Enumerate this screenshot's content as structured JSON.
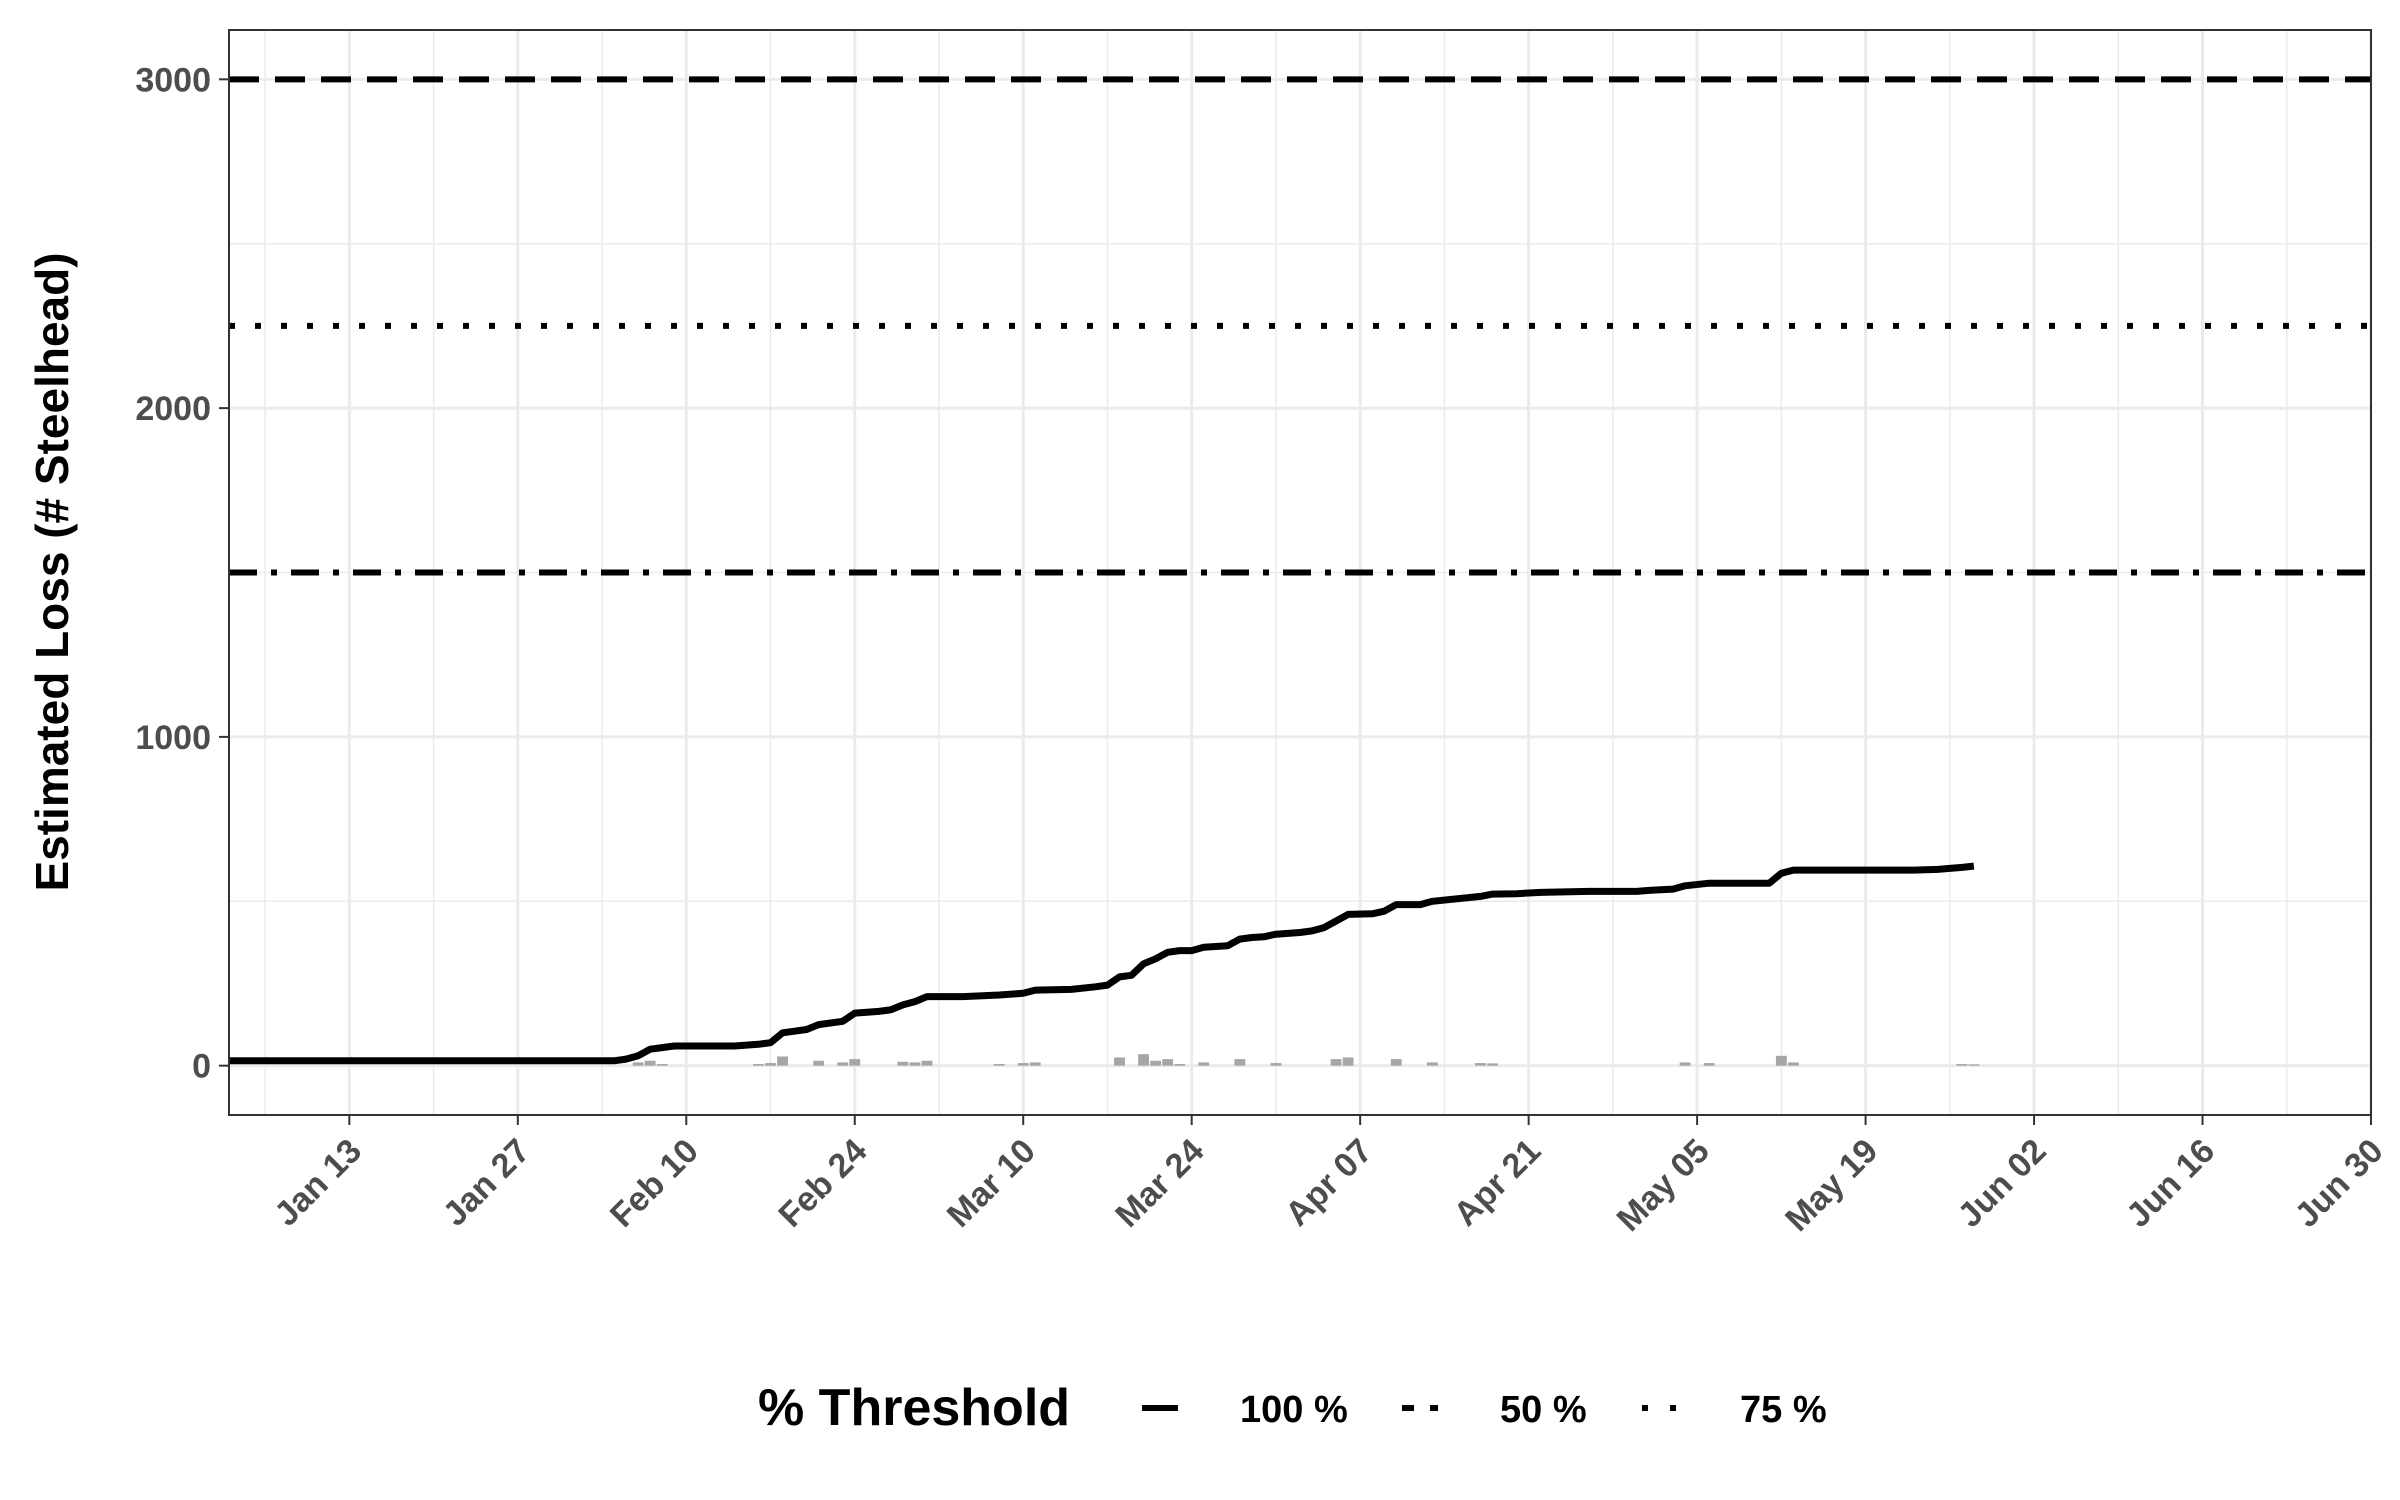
{
  "chart_data": {
    "type": "line",
    "title": "",
    "xlabel": "",
    "ylabel": "Estimated Loss (# Steelhead)",
    "x_axis_type": "date",
    "x_range": [
      "2025-01-03",
      "2025-06-30"
    ],
    "x_ticks": [
      "2025-01-13",
      "2025-01-27",
      "2025-02-10",
      "2025-02-24",
      "2025-03-10",
      "2025-03-24",
      "2025-04-07",
      "2025-04-21",
      "2025-05-05",
      "2025-05-19",
      "2025-06-02",
      "2025-06-16",
      "2025-06-30"
    ],
    "x_tick_labels": [
      "Jan 13",
      "Jan 27",
      "Feb 10",
      "Feb 24",
      "Mar 10",
      "Mar 24",
      "Apr 07",
      "Apr 21",
      "May 05",
      "May 19",
      "Jun 02",
      "Jun 16",
      "Jun 30"
    ],
    "ylim": [
      -150,
      3150
    ],
    "y_ticks": [
      0,
      1000,
      2000,
      3000
    ],
    "y_tick_labels": [
      "0",
      "1000",
      "2000",
      "3000"
    ],
    "grid": true,
    "legend": {
      "title": "% Threshold",
      "position": "bottom",
      "items": [
        {
          "label": "100 %",
          "linetype": "longdash"
        },
        {
          "label": "50 %",
          "linetype": "dotdash"
        },
        {
          "label": "75 %",
          "linetype": "dotted"
        }
      ]
    },
    "threshold_lines": [
      {
        "label": "100 %",
        "value": 3000,
        "linetype": "longdash"
      },
      {
        "label": "75 %",
        "value": 2250,
        "linetype": "dotted"
      },
      {
        "label": "50 %",
        "value": 1500,
        "linetype": "dotdash"
      }
    ],
    "cumulative_series": {
      "color": "#000000",
      "points": [
        [
          "2025-01-03",
          15
        ],
        [
          "2025-01-20",
          15
        ],
        [
          "2025-02-04",
          15
        ],
        [
          "2025-02-05",
          20
        ],
        [
          "2025-02-06",
          30
        ],
        [
          "2025-02-07",
          50
        ],
        [
          "2025-02-08",
          55
        ],
        [
          "2025-02-09",
          60
        ],
        [
          "2025-02-14",
          60
        ],
        [
          "2025-02-16",
          65
        ],
        [
          "2025-02-17",
          70
        ],
        [
          "2025-02-18",
          100
        ],
        [
          "2025-02-19",
          105
        ],
        [
          "2025-02-20",
          110
        ],
        [
          "2025-02-21",
          125
        ],
        [
          "2025-02-23",
          135
        ],
        [
          "2025-02-24",
          160
        ],
        [
          "2025-02-26",
          165
        ],
        [
          "2025-02-27",
          170
        ],
        [
          "2025-02-28",
          185
        ],
        [
          "2025-03-01",
          195
        ],
        [
          "2025-03-02",
          210
        ],
        [
          "2025-03-05",
          210
        ],
        [
          "2025-03-08",
          215
        ],
        [
          "2025-03-10",
          220
        ],
        [
          "2025-03-11",
          230
        ],
        [
          "2025-03-14",
          232
        ],
        [
          "2025-03-16",
          240
        ],
        [
          "2025-03-17",
          245
        ],
        [
          "2025-03-18",
          270
        ],
        [
          "2025-03-19",
          275
        ],
        [
          "2025-03-20",
          310
        ],
        [
          "2025-03-21",
          325
        ],
        [
          "2025-03-22",
          345
        ],
        [
          "2025-03-23",
          350
        ],
        [
          "2025-03-24",
          350
        ],
        [
          "2025-03-25",
          360
        ],
        [
          "2025-03-27",
          365
        ],
        [
          "2025-03-28",
          385
        ],
        [
          "2025-03-29",
          390
        ],
        [
          "2025-03-30",
          392
        ],
        [
          "2025-03-31",
          400
        ],
        [
          "2025-04-02",
          405
        ],
        [
          "2025-04-03",
          410
        ],
        [
          "2025-04-04",
          420
        ],
        [
          "2025-04-05",
          440
        ],
        [
          "2025-04-06",
          460
        ],
        [
          "2025-04-08",
          462
        ],
        [
          "2025-04-09",
          470
        ],
        [
          "2025-04-10",
          490
        ],
        [
          "2025-04-12",
          490
        ],
        [
          "2025-04-13",
          500
        ],
        [
          "2025-04-17",
          515
        ],
        [
          "2025-04-18",
          522
        ],
        [
          "2025-04-20",
          523
        ],
        [
          "2025-04-22",
          527
        ],
        [
          "2025-04-26",
          530
        ],
        [
          "2025-04-30",
          530
        ],
        [
          "2025-05-01",
          533
        ],
        [
          "2025-05-03",
          537
        ],
        [
          "2025-05-04",
          547
        ],
        [
          "2025-05-06",
          555
        ],
        [
          "2025-05-11",
          555
        ],
        [
          "2025-05-12",
          585
        ],
        [
          "2025-05-13",
          595
        ],
        [
          "2025-05-23",
          595
        ],
        [
          "2025-05-25",
          597
        ],
        [
          "2025-05-27",
          603
        ],
        [
          "2025-05-28",
          607
        ]
      ]
    },
    "daily_series": {
      "color": "#a6a6a6",
      "points": [
        [
          "2025-02-06",
          10
        ],
        [
          "2025-02-07",
          15
        ],
        [
          "2025-02-08",
          5
        ],
        [
          "2025-02-16",
          5
        ],
        [
          "2025-02-17",
          8
        ],
        [
          "2025-02-18",
          28
        ],
        [
          "2025-02-21",
          15
        ],
        [
          "2025-02-23",
          10
        ],
        [
          "2025-02-24",
          20
        ],
        [
          "2025-02-28",
          12
        ],
        [
          "2025-03-01",
          10
        ],
        [
          "2025-03-02",
          15
        ],
        [
          "2025-03-08",
          5
        ],
        [
          "2025-03-10",
          8
        ],
        [
          "2025-03-11",
          10
        ],
        [
          "2025-03-18",
          25
        ],
        [
          "2025-03-20",
          35
        ],
        [
          "2025-03-21",
          15
        ],
        [
          "2025-03-22",
          20
        ],
        [
          "2025-03-23",
          5
        ],
        [
          "2025-03-25",
          10
        ],
        [
          "2025-03-28",
          20
        ],
        [
          "2025-03-31",
          8
        ],
        [
          "2025-04-05",
          20
        ],
        [
          "2025-04-06",
          25
        ],
        [
          "2025-04-10",
          20
        ],
        [
          "2025-04-13",
          10
        ],
        [
          "2025-04-17",
          8
        ],
        [
          "2025-04-18",
          7
        ],
        [
          "2025-05-04",
          10
        ],
        [
          "2025-05-06",
          8
        ],
        [
          "2025-05-12",
          30
        ],
        [
          "2025-05-13",
          10
        ],
        [
          "2025-05-27",
          5
        ],
        [
          "2025-05-28",
          4
        ]
      ]
    }
  }
}
